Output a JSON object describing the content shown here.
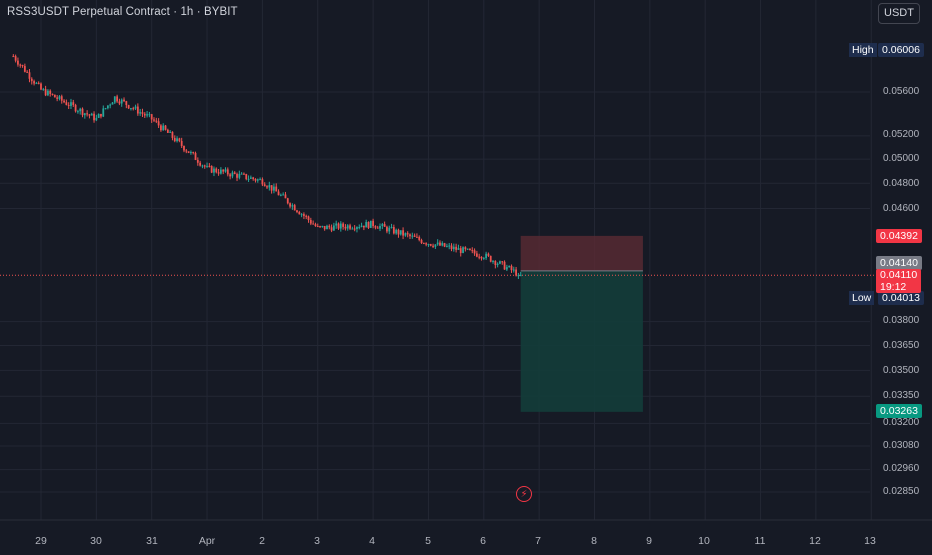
{
  "header": {
    "symbol_title": "RSS3USDT Perpetual Contract · 1h · BYBIT",
    "currency": "USDT"
  },
  "markers": {
    "high_label": "High",
    "high_value": "0.06006",
    "low_label": "Low",
    "low_value": "0.04013"
  },
  "price_tags": {
    "stop_loss": "0.04392",
    "entry": "0.04140",
    "current_price": "0.04110",
    "countdown": "19:12",
    "take_profit": "0.03263"
  },
  "lightning_icon": "lightning-icon",
  "colors": {
    "background": "#161a25",
    "grid": "#232734",
    "up": "#26a69a",
    "down": "#ef5350",
    "stop_zone": "#5a2a33",
    "target_zone": "#133d3a",
    "current_tag": "#f23645",
    "entry_tag": "#787b86",
    "target_tag": "#089981",
    "hl_tag": "#1e2d4d"
  },
  "chart_data": {
    "type": "candlestick",
    "y_scale": "log",
    "y_ticks": [
      "0.05600",
      "0.05200",
      "0.05000",
      "0.04800",
      "0.04600",
      "0.03800",
      "0.03650",
      "0.03500",
      "0.03350",
      "0.03200",
      "0.03080",
      "0.02960",
      "0.02850"
    ],
    "x_ticks": [
      "29",
      "30",
      "31",
      "Apr",
      "2",
      "3",
      "4",
      "5",
      "6",
      "7",
      "8",
      "9",
      "10",
      "11",
      "12",
      "13"
    ],
    "high": 0.06006,
    "low": 0.04013,
    "last": 0.0411,
    "position": {
      "type": "short",
      "entry": 0.0414,
      "stop": 0.04392,
      "target": 0.03263,
      "start": "6 (~16:00)",
      "end": "8 (~21:00)"
    },
    "path_daily": [
      {
        "x": "28 (~12:00)",
        "y": 0.0595
      },
      {
        "x": "29",
        "y": 0.0562
      },
      {
        "x": "30",
        "y": 0.0535
      },
      {
        "x": "30 (~08:00)",
        "y": 0.0555
      },
      {
        "x": "31",
        "y": 0.0535
      },
      {
        "x": "Apr",
        "y": 0.0492
      },
      {
        "x": "2",
        "y": 0.0482
      },
      {
        "x": "2 (~12:00)",
        "y": 0.0464
      },
      {
        "x": "3",
        "y": 0.0445
      },
      {
        "x": "4",
        "y": 0.0448
      },
      {
        "x": "5",
        "y": 0.0434
      },
      {
        "x": "6",
        "y": 0.0425
      },
      {
        "x": "6 (~16:00)",
        "y": 0.0411
      }
    ]
  }
}
